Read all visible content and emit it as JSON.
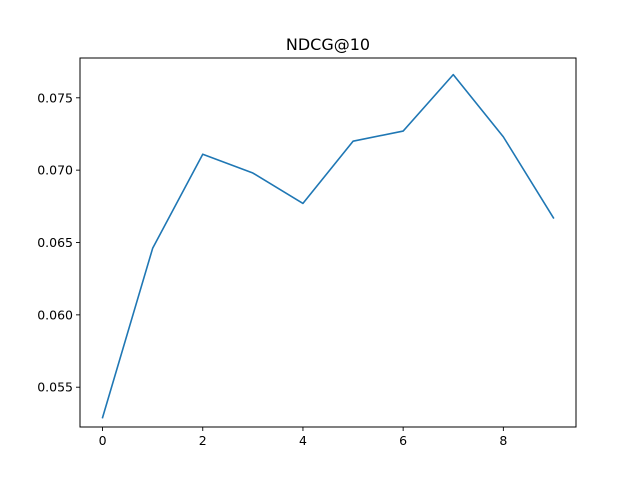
{
  "chart_data": {
    "type": "line",
    "title": "NDCG@10",
    "xlabel": "",
    "ylabel": "",
    "x": [
      0,
      1,
      2,
      3,
      4,
      5,
      6,
      7,
      8,
      9
    ],
    "series": [
      {
        "values": [
          0.0529,
          0.0646,
          0.0711,
          0.0698,
          0.0677,
          0.072,
          0.0727,
          0.0766,
          0.0723,
          0.0667
        ]
      }
    ],
    "xlim": [
      -0.45,
      9.45
    ],
    "ylim": [
      0.05225,
      0.07775
    ],
    "x_ticks": [
      0,
      2,
      4,
      6,
      8
    ],
    "x_tick_labels": [
      "0",
      "2",
      "4",
      "6",
      "8"
    ],
    "y_ticks": [
      0.055,
      0.06,
      0.065,
      0.07,
      0.075
    ],
    "y_tick_labels": [
      "0.055",
      "0.060",
      "0.065",
      "0.070",
      "0.075"
    ],
    "grid": false,
    "legend": "none",
    "colors": {
      "line": "#1f77b4",
      "axes": "#000000",
      "background": "#ffffff"
    }
  }
}
